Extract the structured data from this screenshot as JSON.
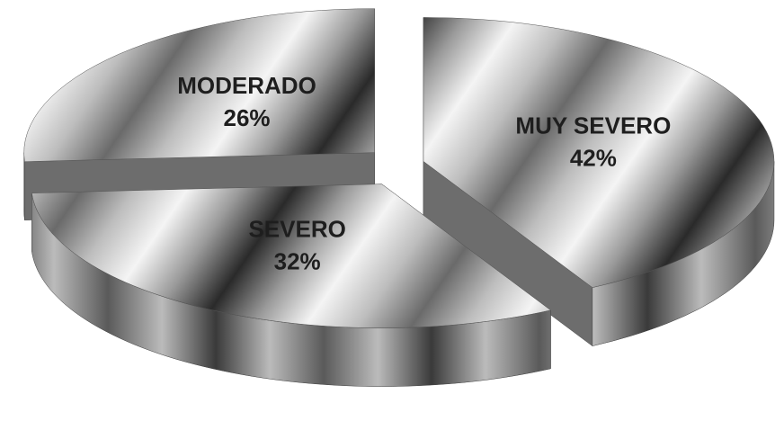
{
  "chart_data": {
    "type": "pie",
    "categories": [
      "MUY SEVERO",
      "SEVERO",
      "MODERADO"
    ],
    "values": [
      42,
      32,
      26
    ],
    "value_labels": [
      "42%",
      "32%",
      "26%"
    ]
  }
}
